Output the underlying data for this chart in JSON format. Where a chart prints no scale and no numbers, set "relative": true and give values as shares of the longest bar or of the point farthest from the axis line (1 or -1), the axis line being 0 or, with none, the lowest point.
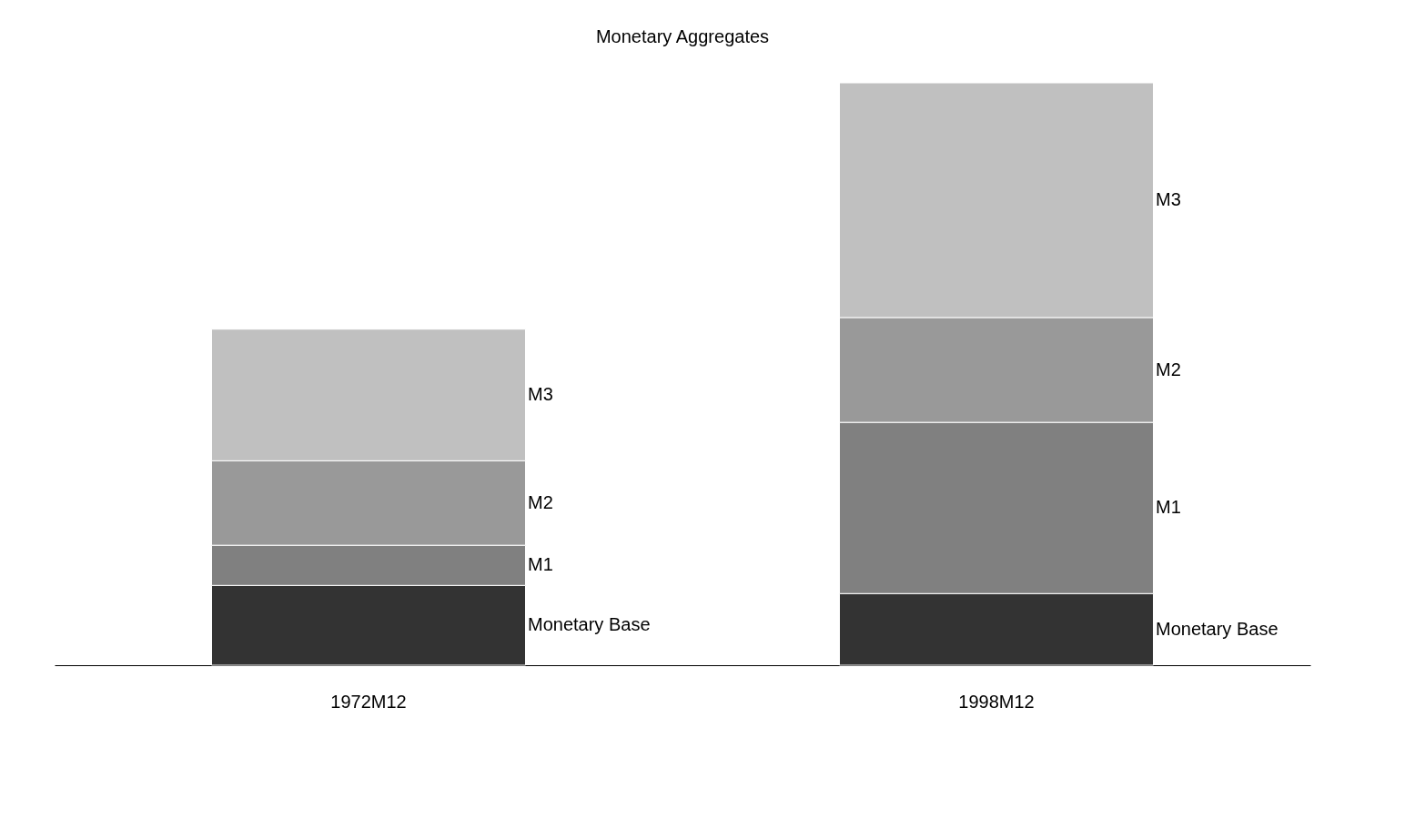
{
  "chart_data": {
    "type": "bar",
    "title": "Monetary Aggregates",
    "stacked": true,
    "relative": true,
    "categories": [
      "1972M12",
      "1998M12"
    ],
    "series": [
      {
        "name": "Monetary Base",
        "color": "#333333",
        "values": [
          0.137,
          0.123
        ]
      },
      {
        "name": "M1",
        "color": "#808080",
        "values": [
          0.069,
          0.294
        ]
      },
      {
        "name": "M2",
        "color": "#999999",
        "values": [
          0.145,
          0.18
        ]
      },
      {
        "name": "M3",
        "color": "#c0c0c0",
        "values": [
          0.226,
          0.403
        ]
      }
    ]
  }
}
